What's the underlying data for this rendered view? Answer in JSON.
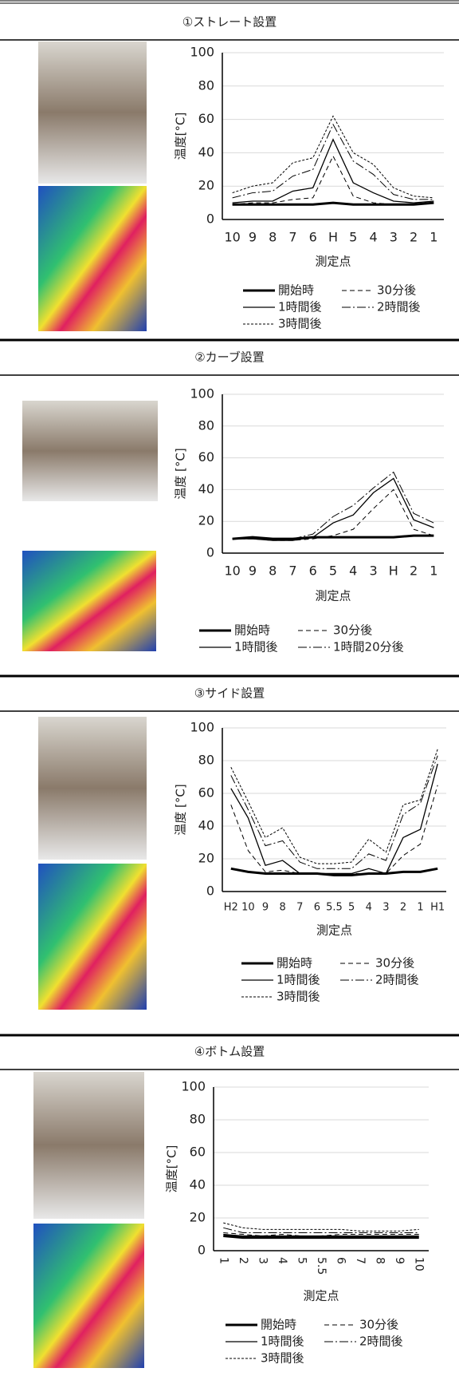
{
  "chart_data": [
    {
      "type": "line",
      "title": "①ストレート設置",
      "ylabel": "温度[°C]",
      "xlabel": "測定点",
      "categories": [
        "10",
        "9",
        "8",
        "7",
        "6",
        "H",
        "5",
        "4",
        "3",
        "2",
        "1"
      ],
      "ylim": [
        0,
        100
      ],
      "yticks": [
        0,
        20,
        40,
        60,
        80,
        100
      ],
      "grid": true,
      "series": [
        {
          "name": "開始時",
          "color": "#000000",
          "dash": "solid",
          "width": 3,
          "values": [
            9,
            9,
            9,
            9,
            9,
            10,
            9,
            9,
            9,
            9,
            10
          ]
        },
        {
          "name": "30分後",
          "color": "#000000",
          "dash": "dashed",
          "width": 1,
          "values": [
            9,
            10,
            10,
            12,
            13,
            38,
            14,
            10,
            9,
            9,
            10
          ]
        },
        {
          "name": "1時間後",
          "color": "#000000",
          "dash": "solid",
          "width": 1.3,
          "values": [
            10,
            11,
            11,
            17,
            19,
            48,
            22,
            16,
            11,
            10,
            11
          ]
        },
        {
          "name": "2時間後",
          "color": "#000000",
          "dash": "dashdot",
          "width": 1,
          "values": [
            13,
            16,
            17,
            26,
            30,
            57,
            35,
            27,
            15,
            12,
            12
          ]
        },
        {
          "name": "3時間後",
          "color": "#000000",
          "dash": "dotted",
          "width": 1,
          "values": [
            16,
            20,
            22,
            34,
            37,
            62,
            40,
            33,
            19,
            14,
            13
          ]
        }
      ]
    },
    {
      "type": "line",
      "title": "②カーブ設置",
      "ylabel": "温度 [°C]",
      "xlabel": "測定点",
      "categories": [
        "10",
        "9",
        "8",
        "7",
        "6",
        "5",
        "4",
        "3",
        "H",
        "2",
        "1"
      ],
      "ylim": [
        0,
        100
      ],
      "yticks": [
        0,
        20,
        40,
        60,
        80,
        100
      ],
      "grid": true,
      "series": [
        {
          "name": "開始時",
          "color": "#000000",
          "dash": "solid",
          "width": 3,
          "values": [
            9,
            10,
            9,
            9,
            10,
            10,
            10,
            10,
            10,
            11,
            11
          ]
        },
        {
          "name": "30分後",
          "color": "#000000",
          "dash": "dashed",
          "width": 1,
          "values": [
            9,
            9,
            8,
            8,
            9,
            11,
            15,
            28,
            40,
            15,
            11
          ]
        },
        {
          "name": "1時間後",
          "color": "#000000",
          "dash": "solid",
          "width": 1.3,
          "values": [
            9,
            9,
            8,
            8,
            10,
            19,
            24,
            38,
            47,
            21,
            16
          ]
        },
        {
          "name": "1時間20分後",
          "color": "#000000",
          "dash": "dashdot",
          "width": 1,
          "values": [
            9,
            9,
            9,
            9,
            12,
            23,
            30,
            41,
            51,
            25,
            19
          ]
        }
      ]
    },
    {
      "type": "line",
      "title": "③サイド設置",
      "ylabel": "温度 [°C]",
      "xlabel": "測定点",
      "categories": [
        "H2",
        "10",
        "9",
        "8",
        "7",
        "6",
        "5.5",
        "5",
        "4",
        "3",
        "2",
        "1",
        "H1"
      ],
      "ylim": [
        0,
        100
      ],
      "yticks": [
        0,
        20,
        40,
        60,
        80,
        100
      ],
      "grid": true,
      "series": [
        {
          "name": "開始時",
          "color": "#000000",
          "dash": "solid",
          "width": 3,
          "values": [
            14,
            12,
            11,
            11,
            11,
            11,
            10,
            10,
            11,
            11,
            12,
            12,
            14
          ]
        },
        {
          "name": "30分後",
          "color": "#000000",
          "dash": "dashed",
          "width": 1,
          "values": [
            53,
            25,
            12,
            13,
            11,
            11,
            10,
            11,
            11,
            11,
            22,
            29,
            65
          ]
        },
        {
          "name": "1時間後",
          "color": "#000000",
          "dash": "solid",
          "width": 1.3,
          "values": [
            63,
            45,
            16,
            19,
            11,
            11,
            11,
            11,
            14,
            11,
            33,
            38,
            78
          ]
        },
        {
          "name": "2時間後",
          "color": "#000000",
          "dash": "dashdot",
          "width": 1,
          "values": [
            71,
            50,
            28,
            31,
            18,
            14,
            14,
            14,
            23,
            19,
            47,
            54,
            83
          ]
        },
        {
          "name": "3時間後",
          "color": "#000000",
          "dash": "dotted",
          "width": 1,
          "values": [
            76,
            55,
            33,
            39,
            21,
            17,
            17,
            18,
            32,
            24,
            53,
            56,
            87
          ]
        }
      ]
    },
    {
      "type": "line",
      "title": "④ボトム設置",
      "ylabel": "温度[°C]",
      "xlabel": "測定点",
      "categories": [
        "1",
        "2",
        "3",
        "4",
        "5",
        "5.5",
        "6",
        "7",
        "8",
        "9",
        "10"
      ],
      "ylim": [
        0,
        100
      ],
      "yticks": [
        0,
        20,
        40,
        60,
        80,
        100
      ],
      "grid": true,
      "rotate_xticks": true,
      "series": [
        {
          "name": "開始時",
          "color": "#000000",
          "dash": "solid",
          "width": 3,
          "values": [
            9,
            8,
            8,
            8,
            8,
            8,
            8,
            8,
            8,
            8,
            8
          ]
        },
        {
          "name": "30分後",
          "color": "#000000",
          "dash": "dashed",
          "width": 1,
          "values": [
            11,
            10,
            9,
            10,
            9,
            9,
            10,
            10,
            10,
            10,
            10
          ]
        },
        {
          "name": "1時間後",
          "color": "#000000",
          "dash": "solid",
          "width": 1.3,
          "values": [
            10,
            9,
            9,
            9,
            9,
            9,
            9,
            9,
            9,
            9,
            9
          ]
        },
        {
          "name": "2時間後",
          "color": "#000000",
          "dash": "dashdot",
          "width": 1,
          "values": [
            14,
            11,
            11,
            11,
            11,
            11,
            11,
            11,
            11,
            11,
            11
          ]
        },
        {
          "name": "3時間後",
          "color": "#000000",
          "dash": "dotted",
          "width": 1,
          "values": [
            17,
            14,
            13,
            13,
            13,
            13,
            13,
            12,
            12,
            12,
            13
          ]
        }
      ]
    }
  ]
}
